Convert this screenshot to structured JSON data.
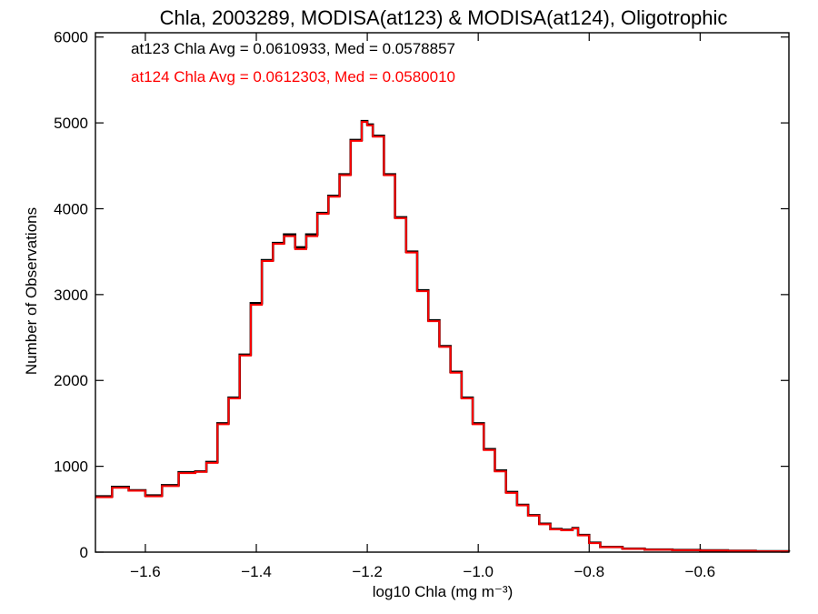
{
  "colors": {
    "background": "#ffffff",
    "axes": "#000000",
    "series_at123": "#000000",
    "series_at124": "#ff0000"
  },
  "chart_data": {
    "type": "line",
    "title": "Chla, 2003289, MODISA(at123) & MODISA(at124), Oligotrophic",
    "xlabel": "log10 Chla (mg m⁻³)",
    "ylabel": "Number of Observations",
    "xlim": [
      -1.69,
      -0.44
    ],
    "ylim": [
      0,
      6050
    ],
    "x_ticks": [
      -1.6,
      -1.4,
      -1.2,
      -1.0,
      -0.8,
      -0.6
    ],
    "x_tick_labels": [
      "−1.6",
      "−1.4",
      "−1.2",
      "−1.0",
      "−0.8",
      "−0.6"
    ],
    "y_ticks": [
      0,
      1000,
      2000,
      3000,
      4000,
      5000,
      6000
    ],
    "y_tick_labels": [
      "0",
      "1000",
      "2000",
      "3000",
      "4000",
      "5000",
      "6000"
    ],
    "x": [
      -1.69,
      -1.66,
      -1.63,
      -1.6,
      -1.57,
      -1.54,
      -1.51,
      -1.49,
      -1.47,
      -1.45,
      -1.43,
      -1.41,
      -1.39,
      -1.37,
      -1.35,
      -1.33,
      -1.31,
      -1.29,
      -1.27,
      -1.25,
      -1.23,
      -1.21,
      -1.2,
      -1.19,
      -1.17,
      -1.15,
      -1.13,
      -1.11,
      -1.09,
      -1.07,
      -1.05,
      -1.03,
      -1.01,
      -0.99,
      -0.97,
      -0.95,
      -0.93,
      -0.91,
      -0.89,
      -0.87,
      -0.85,
      -0.83,
      -0.82,
      -0.8,
      -0.78,
      -0.74,
      -0.7,
      -0.65,
      -0.6,
      -0.55,
      -0.5,
      -0.44
    ],
    "series": [
      {
        "name": "at123",
        "color": "#000000",
        "values": [
          650,
          760,
          720,
          660,
          780,
          930,
          940,
          1050,
          1500,
          1800,
          2300,
          2900,
          3400,
          3600,
          3700,
          3550,
          3700,
          3950,
          4150,
          4400,
          4800,
          5020,
          4980,
          4850,
          4400,
          3900,
          3500,
          3050,
          2700,
          2400,
          2100,
          1800,
          1500,
          1200,
          950,
          700,
          550,
          430,
          330,
          270,
          260,
          280,
          200,
          110,
          60,
          40,
          30,
          25,
          20,
          15,
          10,
          5
        ]
      },
      {
        "name": "at124",
        "color": "#ff0000",
        "values": [
          640,
          750,
          715,
          650,
          770,
          920,
          935,
          1040,
          1490,
          1790,
          2290,
          2880,
          3390,
          3590,
          3680,
          3530,
          3680,
          3940,
          4140,
          4390,
          4790,
          5010,
          4970,
          4840,
          4390,
          3890,
          3490,
          3040,
          2690,
          2390,
          2090,
          1790,
          1490,
          1190,
          940,
          690,
          545,
          425,
          325,
          265,
          255,
          275,
          195,
          105,
          58,
          38,
          28,
          23,
          18,
          14,
          9,
          4
        ]
      }
    ],
    "annotations": [
      {
        "text": "at123 Chla Avg = 0.0610933, Med = 0.0578857",
        "color": "#000000"
      },
      {
        "text": "at124 Chla Avg = 0.0612303, Med = 0.0580010",
        "color": "#ff0000"
      }
    ]
  }
}
